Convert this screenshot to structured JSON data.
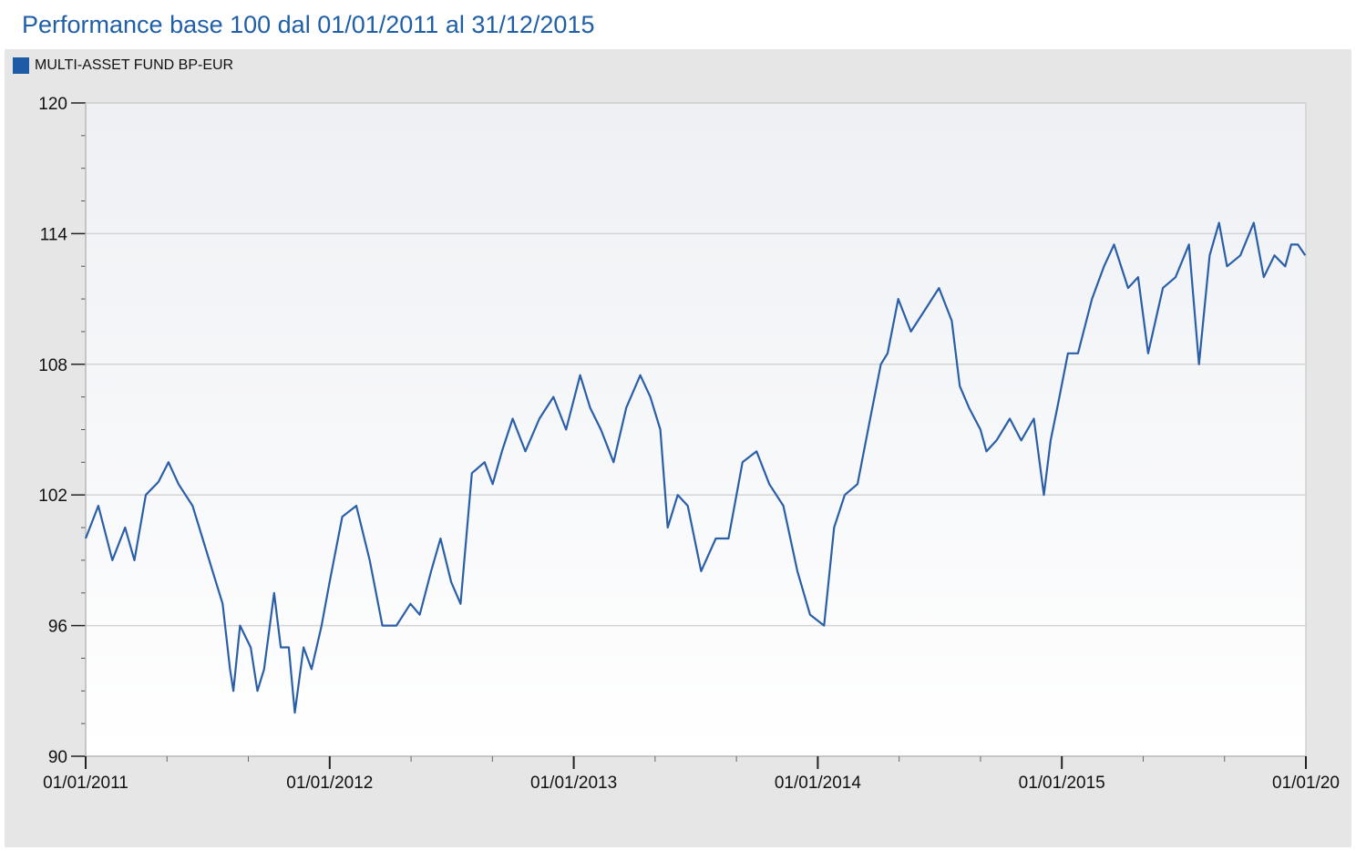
{
  "title": "Performance base 100 dal 01/01/2011 al 31/12/2015",
  "legend": {
    "label": "MULTI-ASSET FUND BP-EUR",
    "color": "#1f5aa6"
  },
  "colors": {
    "series": "#2a5fa8",
    "panel": "#e6e6e6",
    "grid": "#d4d4d4"
  },
  "chart_data": {
    "type": "line",
    "title": "Performance base 100 dal 01/01/2011 al 31/12/2015",
    "xlabel": "",
    "ylabel": "",
    "ylim": [
      90,
      120
    ],
    "yticks": [
      "90",
      "96",
      "102",
      "108",
      "114",
      "120"
    ],
    "xticks": [
      "01/01/2011",
      "01/01/2012",
      "01/01/2013",
      "01/01/2014",
      "01/01/2015",
      "01/01/20"
    ],
    "grid": true,
    "legend_position": "top-left",
    "series": [
      {
        "name": "MULTI-ASSET FUND BP-EUR",
        "x": [
          "2011-01-01",
          "2011-01-20",
          "2011-02-10",
          "2011-03-01",
          "2011-03-15",
          "2011-04-01",
          "2011-04-20",
          "2011-05-05",
          "2011-05-20",
          "2011-06-10",
          "2011-06-25",
          "2011-07-10",
          "2011-07-25",
          "2011-08-05",
          "2011-08-10",
          "2011-08-20",
          "2011-09-05",
          "2011-09-15",
          "2011-09-25",
          "2011-10-10",
          "2011-10-20",
          "2011-11-01",
          "2011-11-10",
          "2011-11-23",
          "2011-12-05",
          "2011-12-20",
          "2012-01-01",
          "2012-01-20",
          "2012-02-10",
          "2012-03-01",
          "2012-03-20",
          "2012-04-10",
          "2012-05-01",
          "2012-05-15",
          "2012-06-01",
          "2012-06-15",
          "2012-07-01",
          "2012-07-15",
          "2012-08-01",
          "2012-08-20",
          "2012-09-01",
          "2012-09-15",
          "2012-10-01",
          "2012-10-20",
          "2012-11-10",
          "2012-12-01",
          "2012-12-20",
          "2013-01-10",
          "2013-01-25",
          "2013-02-10",
          "2013-03-01",
          "2013-03-20",
          "2013-04-10",
          "2013-04-25",
          "2013-05-10",
          "2013-05-21",
          "2013-06-05",
          "2013-06-20",
          "2013-07-10",
          "2013-08-01",
          "2013-08-20",
          "2013-09-10",
          "2013-10-01",
          "2013-10-20",
          "2013-11-10",
          "2013-12-01",
          "2013-12-20",
          "2014-01-10",
          "2014-01-25",
          "2014-02-10",
          "2014-03-01",
          "2014-03-20",
          "2014-04-05",
          "2014-04-15",
          "2014-05-01",
          "2014-05-20",
          "2014-06-10",
          "2014-07-01",
          "2014-07-20",
          "2014-08-01",
          "2014-08-15",
          "2014-09-01",
          "2014-09-10",
          "2014-09-25",
          "2014-10-05",
          "2014-10-15",
          "2014-11-01",
          "2014-11-20",
          "2014-12-05",
          "2014-12-15",
          "2014-12-25",
          "2015-01-10",
          "2015-01-25",
          "2015-02-15",
          "2015-03-05",
          "2015-03-20",
          "2015-04-10",
          "2015-04-25",
          "2015-05-10",
          "2015-06-01",
          "2015-06-20",
          "2015-07-10",
          "2015-07-25",
          "2015-08-10",
          "2015-08-24",
          "2015-09-05",
          "2015-09-25",
          "2015-10-15",
          "2015-10-30",
          "2015-11-15",
          "2015-12-01",
          "2015-12-10",
          "2015-12-20",
          "2015-12-31"
        ],
        "values": [
          100,
          101.5,
          99,
          100.5,
          99,
          102,
          102.6,
          103.5,
          102.5,
          101.5,
          100,
          98.5,
          97,
          94,
          93,
          96,
          95,
          93,
          94,
          97.5,
          95,
          95,
          92,
          95,
          94,
          96,
          98,
          101,
          101.5,
          99,
          96,
          96,
          97,
          96.5,
          98.5,
          100,
          98,
          97,
          103,
          103.5,
          102.5,
          104,
          105.5,
          104,
          105.5,
          106.5,
          105,
          107.5,
          106,
          105,
          103.5,
          106,
          107.5,
          106.5,
          105,
          100.5,
          102,
          101.5,
          98.5,
          100,
          100,
          103.5,
          104,
          102.5,
          101.5,
          98.5,
          96.5,
          96,
          100.5,
          102,
          102.5,
          105.5,
          108,
          108.5,
          111,
          109.5,
          110.5,
          111.5,
          110,
          107,
          106,
          105,
          104,
          104.5,
          105,
          105.5,
          104.5,
          105.5,
          102,
          104.5,
          106,
          108.5,
          108.5,
          111,
          112.5,
          113.5,
          111.5,
          112,
          108.5,
          111.5,
          112,
          113.5,
          108,
          113,
          114.5,
          112.5,
          113,
          114.5,
          112,
          113,
          112.5,
          113.5,
          113.5,
          113
        ]
      }
    ]
  }
}
